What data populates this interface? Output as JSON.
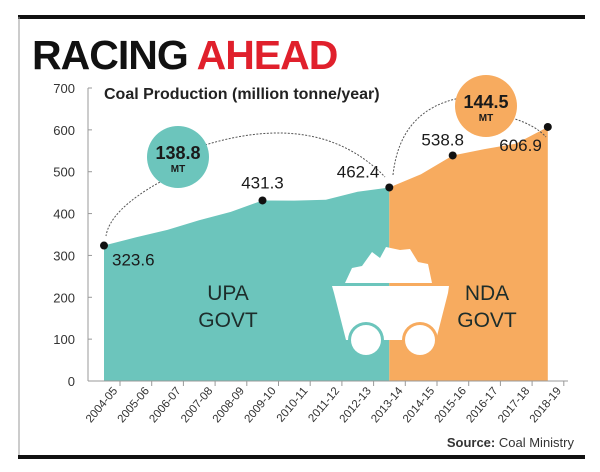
{
  "headline": {
    "part1": "RACING",
    "part2": "AHEAD",
    "part2_color": "#e0202c"
  },
  "source": {
    "label": "Source:",
    "text": "Coal Ministry"
  },
  "chart_data": {
    "type": "area",
    "title": "Coal Production (million tonne/year)",
    "xlabel": "",
    "ylabel": "",
    "ylim": [
      0,
      700
    ],
    "yticks": [
      0,
      100,
      200,
      300,
      400,
      500,
      600,
      700
    ],
    "categories": [
      "2004-05",
      "2005-06",
      "2006-07",
      "2007-08",
      "2008-09",
      "2009-10",
      "2010-11",
      "2011-12",
      "2012-13",
      "2013-14",
      "2014-15",
      "2015-16",
      "2016-17",
      "2017-18",
      "2018-19"
    ],
    "values": [
      323.6,
      343,
      361,
      384,
      404,
      431.3,
      431,
      433,
      452,
      462.4,
      494,
      538.8,
      554,
      567,
      606.9
    ],
    "grid": false,
    "segments": [
      {
        "name": "UPA GOVT",
        "label_lines": [
          "UPA",
          "GOVT"
        ],
        "from": "2004-05",
        "to": "2013-14",
        "color": "#6cc5bc"
      },
      {
        "name": "NDA GOVT",
        "label_lines": [
          "NDA",
          "GOVT"
        ],
        "from": "2013-14",
        "to": "2018-19",
        "color": "#f7ab5f"
      }
    ],
    "data_labels": [
      {
        "category": "2004-05",
        "text": "323.6"
      },
      {
        "category": "2009-10",
        "text": "431.3"
      },
      {
        "category": "2013-14",
        "text": "462.4"
      },
      {
        "category": "2015-16",
        "text": "538.8"
      },
      {
        "category": "2018-19",
        "text": "606.9"
      }
    ],
    "annotations": [
      {
        "value": "138.8",
        "unit": "MT",
        "from": "2004-05",
        "to": "2013-14",
        "color": "#6cc5bc"
      },
      {
        "value": "144.5",
        "unit": "MT",
        "from": "2013-14",
        "to": "2018-19",
        "color": "#f7ab5f"
      }
    ]
  }
}
